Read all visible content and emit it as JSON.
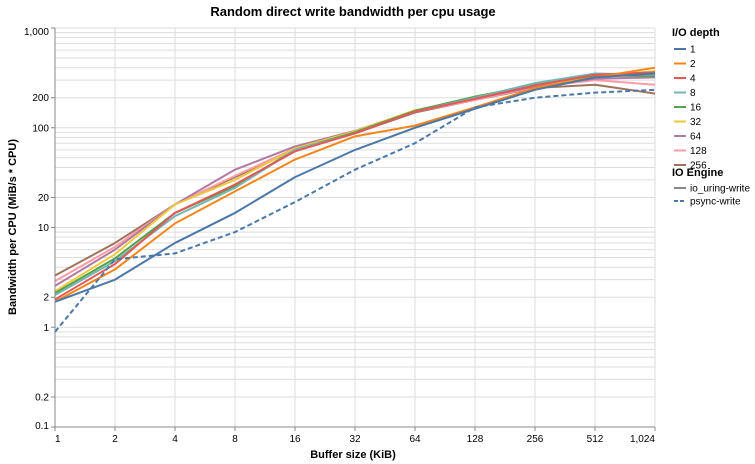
{
  "chart_data": {
    "type": "line",
    "title": "Random direct write bandwidth per cpu usage",
    "xlabel": "Buffer size (KiB)",
    "ylabel": "Bandwidth per CPU (MiB/s * CPU)",
    "x_scale": "log2",
    "y_scale": "log10",
    "xlim": [
      1,
      1024
    ],
    "ylim": [
      0.1,
      1000
    ],
    "x": [
      1,
      2,
      4,
      8,
      16,
      32,
      64,
      128,
      256,
      512,
      1024
    ],
    "x_tick_labels": [
      "1",
      "2",
      "4",
      "8",
      "16",
      "32",
      "64",
      "128",
      "256",
      "512",
      "1,024"
    ],
    "y_ticks": [
      0.1,
      0.2,
      1,
      2,
      10,
      20,
      100,
      200,
      1000
    ],
    "y_tick_labels": [
      "0.1",
      "0.2",
      "1",
      "2",
      "10",
      "20",
      "100",
      "200",
      "1,000"
    ],
    "grid": true,
    "legend_placement": "right",
    "legend": {
      "depth_title": "I/O depth",
      "engine_title": "IO Engine",
      "engines": [
        {
          "label": "io_uring-write",
          "dash": "solid"
        },
        {
          "label": "psync-write",
          "dash": "dashed"
        }
      ]
    },
    "series": [
      {
        "name": "1",
        "engine": "io_uring-write",
        "color": "#4c78a8",
        "values": [
          1.8,
          3.0,
          7.0,
          14,
          32,
          60,
          100,
          155,
          240,
          320,
          350
        ]
      },
      {
        "name": "1",
        "engine": "psync-write",
        "color": "#4c78a8",
        "values": [
          0.9,
          4.8,
          5.5,
          9.0,
          18,
          38,
          70,
          160,
          200,
          225,
          240
        ]
      },
      {
        "name": "2",
        "engine": "io_uring-write",
        "color": "#f58518",
        "values": [
          1.8,
          3.8,
          11,
          23,
          48,
          82,
          105,
          160,
          250,
          320,
          400
        ]
      },
      {
        "name": "4",
        "engine": "io_uring-write",
        "color": "#e45756",
        "values": [
          1.9,
          4.3,
          14,
          27,
          58,
          88,
          145,
          195,
          265,
          340,
          360
        ]
      },
      {
        "name": "8",
        "engine": "io_uring-write",
        "color": "#72b7b2",
        "values": [
          2.1,
          4.6,
          13,
          25,
          60,
          88,
          145,
          200,
          280,
          350,
          340
        ]
      },
      {
        "name": "16",
        "engine": "io_uring-write",
        "color": "#54a24b",
        "values": [
          2.2,
          4.9,
          14,
          26,
          60,
          90,
          148,
          205,
          270,
          335,
          330
        ]
      },
      {
        "name": "32",
        "engine": "io_uring-write",
        "color": "#eeca3b",
        "values": [
          2.3,
          5.4,
          17,
          30,
          62,
          92,
          150,
          200,
          265,
          330,
          370
        ]
      },
      {
        "name": "64",
        "engine": "io_uring-write",
        "color": "#b279a2",
        "values": [
          2.6,
          6.0,
          17,
          38,
          65,
          93,
          148,
          195,
          260,
          310,
          320
        ]
      },
      {
        "name": "128",
        "engine": "io_uring-write",
        "color": "#ff9da6",
        "values": [
          2.9,
          6.4,
          17,
          33,
          62,
          90,
          145,
          190,
          255,
          300,
          270
        ]
      },
      {
        "name": "256",
        "engine": "io_uring-write",
        "color": "#9d755d",
        "values": [
          3.3,
          7.0,
          17,
          32,
          60,
          88,
          142,
          190,
          250,
          270,
          220
        ]
      }
    ]
  }
}
